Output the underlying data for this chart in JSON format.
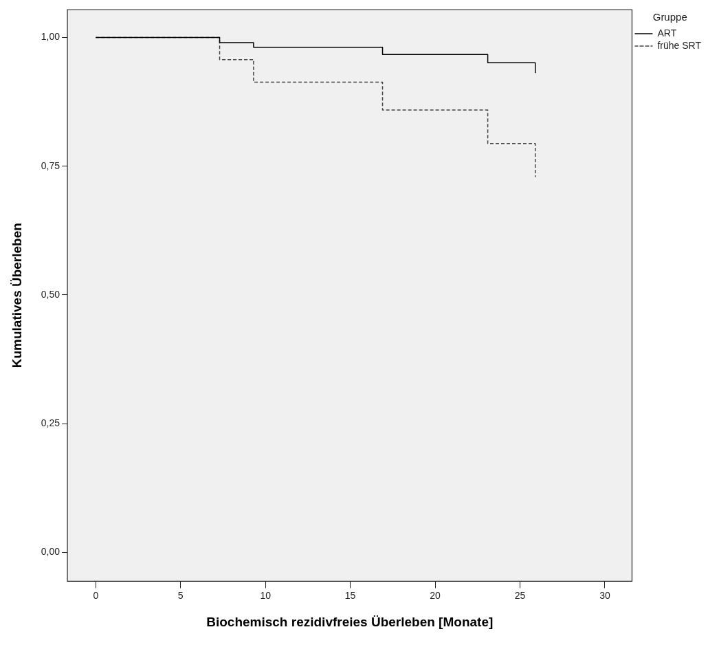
{
  "chart_data": {
    "type": "step",
    "xlabel": "Biochemisch rezidivfreies Überleben [Monate]",
    "ylabel": "Kumulatives Überleben",
    "legend_title": "Gruppe",
    "legend": "top right",
    "series": [
      {
        "name": "ART",
        "color": "#000000",
        "line_style": "solid",
        "x": [
          0,
          7.3,
          9.3,
          16.9,
          23.1,
          25.9
        ],
        "values": [
          1.0,
          0.99,
          0.981,
          0.967,
          0.951,
          0.931
        ]
      },
      {
        "name": "frühe SRT",
        "color": "#444444",
        "line_style": "dashed",
        "x": [
          0,
          7.3,
          9.3,
          16.9,
          23.1,
          25.9
        ],
        "values": [
          1.0,
          0.957,
          0.913,
          0.859,
          0.794,
          0.729
        ]
      }
    ],
    "xlim": [
      -1.67,
      31.6
    ],
    "xticks": [
      0,
      5,
      10,
      15,
      20,
      25,
      30
    ],
    "ylim": [
      -0.056,
      1.054
    ],
    "yticks": [
      {
        "value": 0,
        "label": "0,00"
      },
      {
        "value": 0.25,
        "label": "0,25"
      },
      {
        "value": 0.5,
        "label": "0,50"
      },
      {
        "value": 0.75,
        "label": "0,75"
      },
      {
        "value": 1,
        "label": "1,00"
      }
    ],
    "grid": false,
    "marker": "none"
  }
}
